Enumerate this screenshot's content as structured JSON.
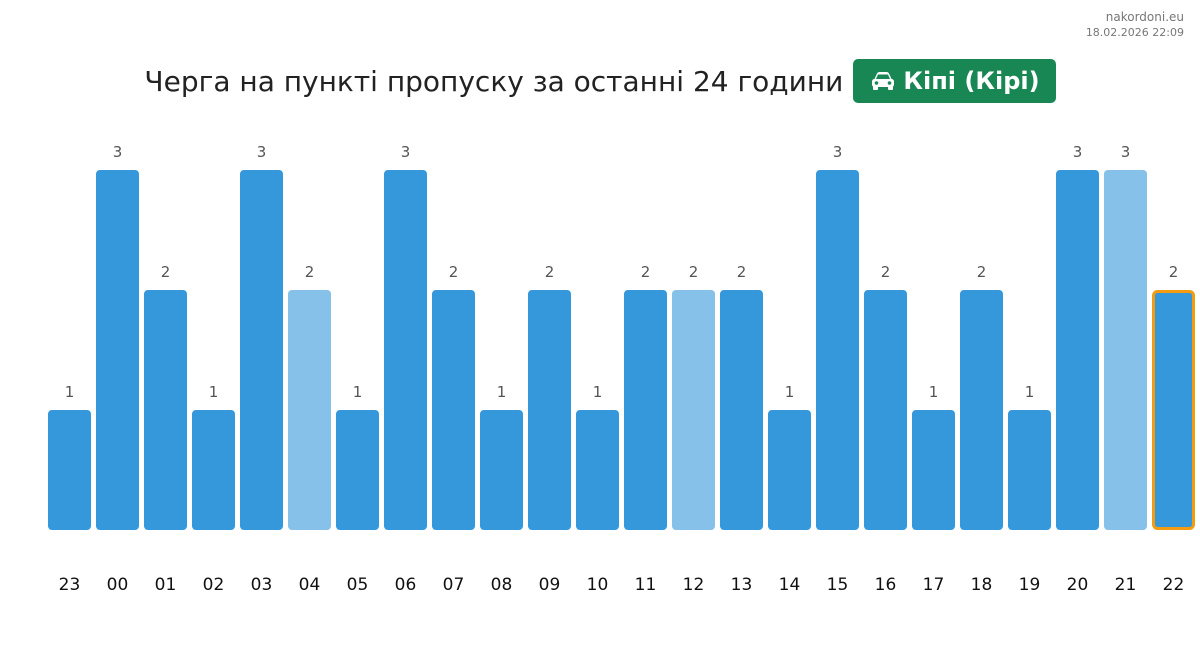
{
  "watermark": {
    "site": "nakordoni.eu",
    "timestamp": "18.02.2026 22:09"
  },
  "header": {
    "title": "Черга на пункті пропуску за останні 24 години",
    "badge_label": "Кіпі (Кірі)",
    "badge_icon": "car-icon",
    "badge_color": "#198754"
  },
  "chart_data": {
    "type": "bar",
    "categories": [
      "23",
      "00",
      "01",
      "02",
      "03",
      "04",
      "05",
      "06",
      "07",
      "08",
      "09",
      "10",
      "11",
      "12",
      "13",
      "14",
      "15",
      "16",
      "17",
      "18",
      "19",
      "20",
      "21",
      "22"
    ],
    "values": [
      1,
      3,
      2,
      1,
      3,
      2,
      1,
      3,
      2,
      1,
      2,
      1,
      2,
      2,
      2,
      1,
      3,
      2,
      1,
      2,
      1,
      3,
      3,
      2
    ],
    "ylim": [
      0,
      3
    ],
    "grid": false,
    "show_value_labels": true,
    "colors": {
      "bar": "#3498db",
      "bar_light": "#85c1e9",
      "highlight_border": "#f39c12"
    },
    "light_bar_categories": [
      "04",
      "12",
      "21"
    ],
    "highlighted_category": "22"
  }
}
